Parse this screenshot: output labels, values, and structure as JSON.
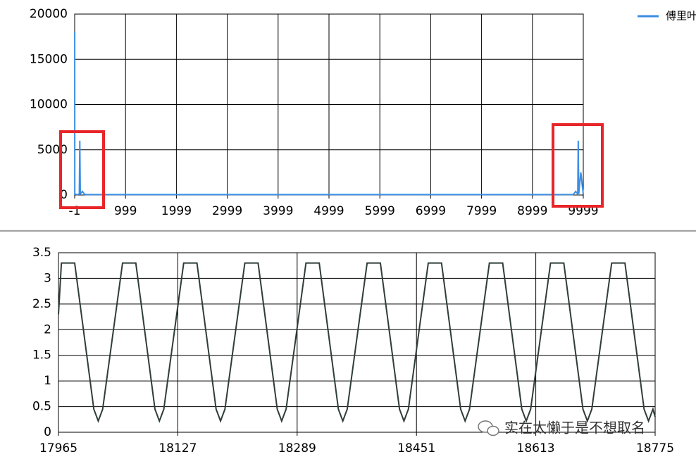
{
  "chart_data": [
    {
      "type": "line",
      "x": [
        0,
        1,
        50,
        90,
        100,
        110,
        150,
        200,
        1000,
        3000,
        5000,
        7000,
        9000,
        9800,
        9850,
        9890,
        9900,
        9910,
        9950,
        9999
      ],
      "series": [
        {
          "name": "傅里叶",
          "color": "#3b8fe3",
          "values": [
            18000,
            100,
            50,
            100,
            6000,
            100,
            400,
            50,
            50,
            50,
            50,
            50,
            50,
            50,
            400,
            100,
            6000,
            100,
            2500,
            50
          ]
        }
      ],
      "xlim": [
        -1,
        9999
      ],
      "xticks": [
        -1,
        999,
        1999,
        2999,
        3999,
        4999,
        5999,
        6999,
        7999,
        8999,
        9999
      ],
      "ylim": [
        0,
        20000
      ],
      "yticks": [
        0,
        5000,
        10000,
        15000,
        20000
      ],
      "grid": true,
      "legend": "top-right"
    },
    {
      "type": "line",
      "x": [
        17965,
        17969,
        17987,
        18013,
        18019,
        18025,
        18052,
        18070,
        18096,
        18102,
        18108,
        18135,
        18153,
        18179,
        18185,
        18191,
        18218,
        18236,
        18262,
        18268,
        18274,
        18301,
        18319,
        18345,
        18351,
        18357,
        18384,
        18402,
        18428,
        18434,
        18440,
        18467,
        18485,
        18511,
        18517,
        18523,
        18550,
        18568,
        18594,
        18600,
        18606,
        18633,
        18651,
        18677,
        18683,
        18689,
        18716,
        18734,
        18760,
        18766,
        18772,
        18775
      ],
      "series": [
        {
          "color": "#2f3d38",
          "values": [
            2.3,
            3.3,
            3.3,
            0.45,
            0.22,
            0.45,
            3.3,
            3.3,
            0.45,
            0.22,
            0.45,
            3.3,
            3.3,
            0.45,
            0.22,
            0.45,
            3.3,
            3.3,
            0.45,
            0.22,
            0.45,
            3.3,
            3.3,
            0.45,
            0.22,
            0.45,
            3.3,
            3.3,
            0.45,
            0.22,
            0.45,
            3.3,
            3.3,
            0.45,
            0.22,
            0.45,
            3.3,
            3.3,
            0.45,
            0.22,
            0.45,
            3.3,
            3.3,
            0.45,
            0.22,
            0.45,
            3.3,
            3.3,
            0.45,
            0.22,
            0.45,
            0.3
          ]
        }
      ],
      "xlim": [
        17965,
        18775
      ],
      "xticks": [
        17965,
        18127,
        18289,
        18451,
        18613,
        18775
      ],
      "ylim": [
        0,
        3.5
      ],
      "yticks": [
        0,
        0.5,
        1,
        1.5,
        2,
        2.5,
        3,
        3.5
      ],
      "grid": true
    }
  ],
  "watermark": "实在太懒于是不想取名"
}
